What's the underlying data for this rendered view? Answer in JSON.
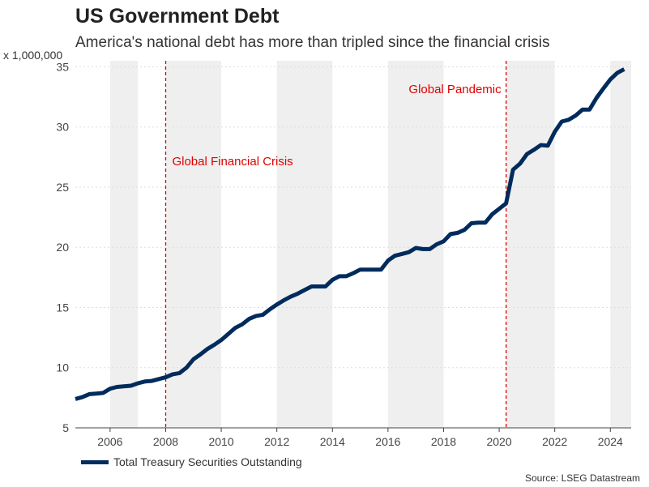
{
  "title": "US Government Debt",
  "subtitle": "America's national debt has more than tripled since the financial crisis",
  "unit_label": "x 1,000,000",
  "source": "Source: LSEG Datastream",
  "legend_label": "Total Treasury Securities Outstanding",
  "colors": {
    "line": "#002b5c",
    "band": "#efefef",
    "annotation": "#e00000",
    "axis": "#444444",
    "grid": "#dddddd"
  },
  "chart_data": {
    "type": "line",
    "title": "US Government Debt",
    "subtitle": "America's national debt has more than tripled since the financial crisis",
    "ylabel": "x 1,000,000",
    "xlabel": "",
    "xlim": [
      2004.75,
      2024.75
    ],
    "ylim": [
      5,
      35.5
    ],
    "x_ticks": [
      2006,
      2008,
      2010,
      2012,
      2014,
      2016,
      2018,
      2020,
      2022,
      2024
    ],
    "y_ticks": [
      5,
      10,
      15,
      20,
      25,
      30,
      35
    ],
    "shaded_bands": [
      [
        2006,
        2007
      ],
      [
        2008,
        2010
      ],
      [
        2012,
        2014
      ],
      [
        2016,
        2018
      ],
      [
        2020.25,
        2022
      ],
      [
        2024,
        2024.75
      ]
    ],
    "annotations": [
      {
        "label": "Global Financial Crisis",
        "x": 2008.0
      },
      {
        "label": "Global Pandemic",
        "x": 2020.25
      }
    ],
    "legend_position": "bottom-left",
    "grid": true,
    "series": [
      {
        "name": "Total Treasury Securities Outstanding",
        "x": [
          2004.75,
          2005.0,
          2005.25,
          2005.5,
          2005.75,
          2006.0,
          2006.25,
          2006.5,
          2006.75,
          2007.0,
          2007.25,
          2007.5,
          2007.75,
          2008.0,
          2008.25,
          2008.5,
          2008.75,
          2009.0,
          2009.25,
          2009.5,
          2009.75,
          2010.0,
          2010.25,
          2010.5,
          2010.75,
          2011.0,
          2011.25,
          2011.5,
          2011.75,
          2012.0,
          2012.25,
          2012.5,
          2012.75,
          2013.0,
          2013.25,
          2013.5,
          2013.75,
          2014.0,
          2014.25,
          2014.5,
          2014.75,
          2015.0,
          2015.25,
          2015.5,
          2015.75,
          2016.0,
          2016.25,
          2016.5,
          2016.75,
          2017.0,
          2017.25,
          2017.5,
          2017.75,
          2018.0,
          2018.25,
          2018.5,
          2018.75,
          2019.0,
          2019.25,
          2019.5,
          2019.75,
          2020.0,
          2020.25,
          2020.5,
          2020.75,
          2021.0,
          2021.25,
          2021.5,
          2021.75,
          2022.0,
          2022.25,
          2022.5,
          2022.75,
          2023.0,
          2023.25,
          2023.5,
          2023.75,
          2024.0,
          2024.25,
          2024.5
        ],
        "values": [
          7.4,
          7.55,
          7.8,
          7.85,
          7.9,
          8.25,
          8.4,
          8.45,
          8.5,
          8.7,
          8.85,
          8.9,
          9.05,
          9.2,
          9.45,
          9.55,
          10.0,
          10.7,
          11.1,
          11.55,
          11.9,
          12.3,
          12.8,
          13.3,
          13.6,
          14.05,
          14.3,
          14.4,
          14.85,
          15.25,
          15.6,
          15.9,
          16.15,
          16.45,
          16.75,
          16.75,
          16.75,
          17.3,
          17.6,
          17.6,
          17.85,
          18.15,
          18.15,
          18.15,
          18.15,
          18.9,
          19.3,
          19.45,
          19.6,
          19.95,
          19.85,
          19.85,
          20.25,
          20.5,
          21.1,
          21.2,
          21.45,
          22.0,
          22.05,
          22.05,
          22.75,
          23.2,
          23.65,
          26.45,
          26.95,
          27.75,
          28.1,
          28.5,
          28.45,
          29.6,
          30.45,
          30.6,
          30.95,
          31.45,
          31.45,
          32.4,
          33.2,
          33.95,
          34.5,
          34.8
        ]
      }
    ]
  }
}
